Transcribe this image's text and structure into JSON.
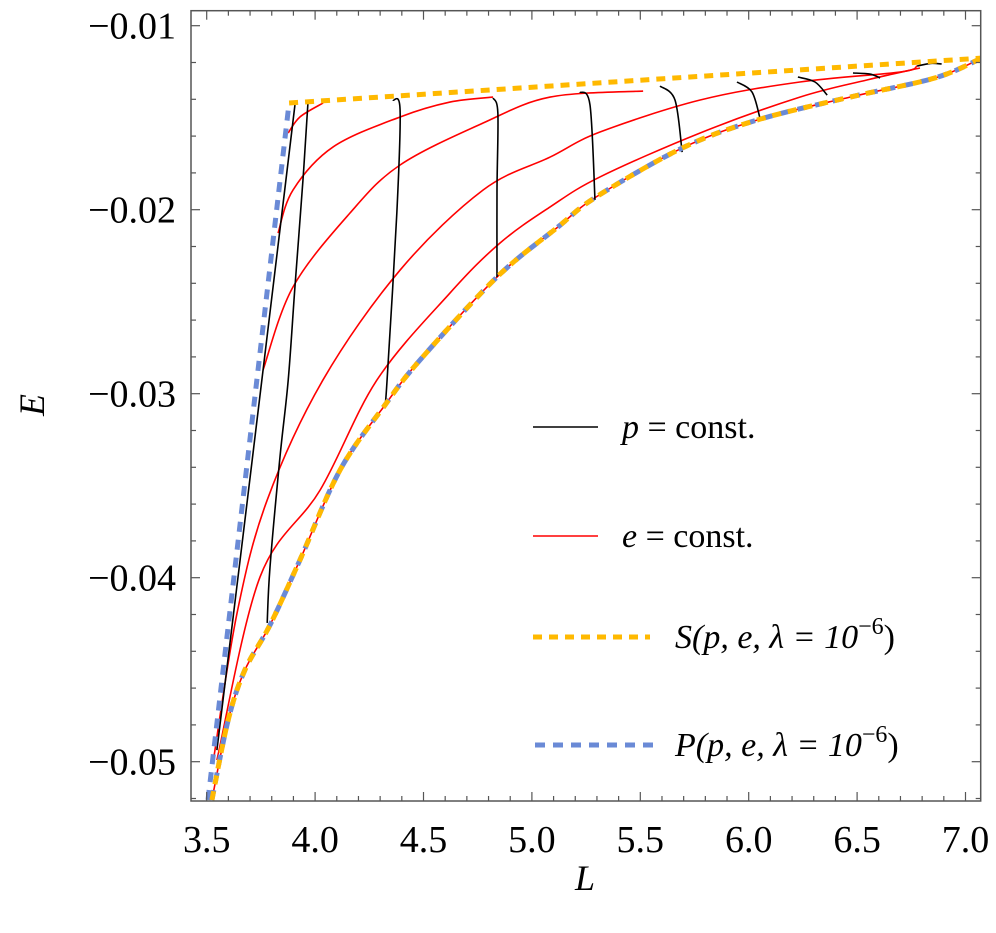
{
  "chart_data": {
    "type": "line",
    "xlabel": "L",
    "ylabel": "E",
    "xlim": [
      3.428,
      7.07
    ],
    "ylim": [
      -0.05214,
      -0.00917
    ],
    "grid": false,
    "legend_placement": "center-right",
    "xticks": {
      "major": [
        3.5,
        4.0,
        4.5,
        5.0,
        5.5,
        6.0,
        6.5,
        7.0
      ],
      "labels": [
        "3.5",
        "4.0",
        "4.5",
        "5.0",
        "5.5",
        "6.0",
        "6.5",
        "7.0"
      ],
      "minor_step": 0.1
    },
    "yticks": {
      "major": [
        -0.01,
        -0.02,
        -0.03,
        -0.04,
        -0.05
      ],
      "labels": [
        "−0.01",
        "−0.02",
        "−0.03",
        "−0.04",
        "−0.05"
      ],
      "minor_step": 0.002
    },
    "colors": {
      "p_const": "#000000",
      "e_const": "#ff0000",
      "S": "#ffb900",
      "P": "#6a8ad6"
    },
    "legend": [
      {
        "key": "p_const",
        "style": "solid",
        "var": "p",
        "rest": " = const."
      },
      {
        "key": "e_const",
        "style": "solid",
        "var": "e",
        "rest": " = const."
      },
      {
        "key": "S",
        "style": "dotted",
        "prefix": "S",
        "args": "(p, e, λ = 10",
        "sup": "−6",
        "suffix": ")"
      },
      {
        "key": "P",
        "style": "dashed",
        "prefix": "P",
        "args": "(p, e, λ = 10",
        "sup": "−6",
        "suffix": ")"
      }
    ],
    "series": {
      "e_const": [
        [
          [
            3.876,
            -0.01583
          ],
          [
            3.93,
            -0.01496
          ],
          [
            4.037,
            -0.0142
          ]
        ],
        [
          [
            3.829,
            -0.02127
          ],
          [
            3.898,
            -0.01893
          ],
          [
            4.083,
            -0.01659
          ],
          [
            4.392,
            -0.01496
          ],
          [
            4.622,
            -0.01415
          ],
          [
            4.821,
            -0.01388
          ]
        ],
        [
          [
            3.76,
            -0.02871
          ],
          [
            3.898,
            -0.0242
          ],
          [
            4.161,
            -0.02018
          ],
          [
            4.392,
            -0.01757
          ],
          [
            4.775,
            -0.01529
          ],
          [
            5.084,
            -0.01388
          ],
          [
            5.513,
            -0.01355
          ]
        ],
        [
          [
            3.529,
            -0.05007
          ],
          [
            3.64,
            -0.04192
          ],
          [
            3.779,
            -0.03578
          ],
          [
            4.036,
            -0.02926
          ],
          [
            4.392,
            -0.02328
          ],
          [
            4.775,
            -0.01893
          ],
          [
            5.084,
            -0.01714
          ],
          [
            5.314,
            -0.01578
          ],
          [
            5.776,
            -0.01404
          ],
          [
            6.236,
            -0.01306
          ],
          [
            6.698,
            -0.01252
          ],
          [
            6.777,
            -0.01219
          ]
        ],
        [
          [
            3.547,
            -0.04991
          ],
          [
            3.746,
            -0.03996
          ],
          [
            4.023,
            -0.03524
          ],
          [
            4.285,
            -0.02926
          ],
          [
            4.622,
            -0.02453
          ],
          [
            4.853,
            -0.02181
          ],
          [
            5.084,
            -0.01985
          ],
          [
            5.314,
            -0.01822
          ],
          [
            5.776,
            -0.01583
          ],
          [
            6.236,
            -0.01388
          ],
          [
            6.545,
            -0.01295
          ],
          [
            6.79,
            -0.0123
          ]
        ],
        [
          [
            3.524,
            -0.05208
          ],
          [
            3.599,
            -0.04774
          ],
          [
            3.676,
            -0.04502
          ],
          [
            3.792,
            -0.04257
          ],
          [
            3.93,
            -0.03904
          ],
          [
            4.115,
            -0.03415
          ],
          [
            4.322,
            -0.03062
          ],
          [
            4.484,
            -0.02817
          ],
          [
            4.839,
            -0.02366
          ],
          [
            5.12,
            -0.02094
          ],
          [
            5.296,
            -0.01931
          ],
          [
            5.693,
            -0.01665
          ],
          [
            6.038,
            -0.01513
          ],
          [
            6.467,
            -0.01388
          ],
          [
            6.859,
            -0.01284
          ],
          [
            7.075,
            -0.01176
          ]
        ]
      ],
      "p_const": [
        [
          [
            3.907,
            -0.01431
          ],
          [
            3.76,
            -0.02871
          ],
          [
            3.654,
            -0.03904
          ],
          [
            3.547,
            -0.04937
          ]
        ],
        [
          [
            3.967,
            -0.0142
          ],
          [
            3.944,
            -0.01839
          ],
          [
            3.907,
            -0.0242
          ],
          [
            3.876,
            -0.02926
          ],
          [
            3.838,
            -0.03344
          ],
          [
            3.792,
            -0.03942
          ],
          [
            3.779,
            -0.04246
          ]
        ],
        [
          [
            4.359,
            -0.01404
          ],
          [
            4.392,
            -0.01458
          ],
          [
            4.377,
            -0.02018
          ],
          [
            4.332,
            -0.02926
          ],
          [
            4.322,
            -0.03062
          ]
        ],
        [
          [
            4.821,
            -0.01393
          ],
          [
            4.843,
            -0.01475
          ],
          [
            4.839,
            -0.01893
          ],
          [
            4.839,
            -0.02366
          ]
        ],
        [
          [
            5.221,
            -0.0136
          ],
          [
            5.268,
            -0.01431
          ],
          [
            5.291,
            -0.01947
          ]
        ],
        [
          [
            5.591,
            -0.01328
          ],
          [
            5.66,
            -0.01404
          ],
          [
            5.693,
            -0.01687
          ]
        ],
        [
          [
            5.946,
            -0.01306
          ],
          [
            6.015,
            -0.0136
          ],
          [
            6.052,
            -0.01502
          ]
        ],
        [
          [
            6.227,
            -0.01279
          ],
          [
            6.306,
            -0.01306
          ],
          [
            6.362,
            -0.01377
          ]
        ],
        [
          [
            6.481,
            -0.01257
          ],
          [
            6.559,
            -0.01263
          ],
          [
            6.606,
            -0.01284
          ]
        ],
        [
          [
            6.777,
            -0.01219
          ],
          [
            6.839,
            -0.01205
          ],
          [
            6.89,
            -0.01208
          ]
        ]
      ],
      "S": [
        [
          [
            3.88,
            -0.0142
          ],
          [
            7.075,
            -0.01176
          ]
        ],
        [
          [
            3.524,
            -0.05208
          ],
          [
            3.599,
            -0.04774
          ],
          [
            3.676,
            -0.04502
          ],
          [
            3.792,
            -0.04257
          ],
          [
            3.93,
            -0.03904
          ],
          [
            4.115,
            -0.03415
          ],
          [
            4.322,
            -0.03062
          ],
          [
            4.484,
            -0.02817
          ],
          [
            4.839,
            -0.02366
          ],
          [
            5.12,
            -0.02094
          ],
          [
            5.296,
            -0.01931
          ],
          [
            5.693,
            -0.01665
          ],
          [
            6.038,
            -0.01513
          ],
          [
            6.467,
            -0.01388
          ],
          [
            6.859,
            -0.01284
          ],
          [
            7.075,
            -0.01176
          ]
        ]
      ],
      "P": [
        [
          [
            3.506,
            -0.05208
          ],
          [
            3.88,
            -0.0142
          ]
        ],
        [
          [
            3.524,
            -0.05208
          ],
          [
            3.599,
            -0.04774
          ],
          [
            3.676,
            -0.04502
          ],
          [
            3.792,
            -0.04257
          ],
          [
            3.93,
            -0.03904
          ],
          [
            4.115,
            -0.03415
          ],
          [
            4.322,
            -0.03062
          ],
          [
            4.484,
            -0.02817
          ],
          [
            4.839,
            -0.02366
          ],
          [
            5.12,
            -0.02094
          ],
          [
            5.296,
            -0.01931
          ],
          [
            5.693,
            -0.01665
          ],
          [
            6.038,
            -0.01513
          ],
          [
            6.467,
            -0.01388
          ],
          [
            6.859,
            -0.01284
          ],
          [
            7.075,
            -0.01176
          ]
        ]
      ]
    }
  }
}
